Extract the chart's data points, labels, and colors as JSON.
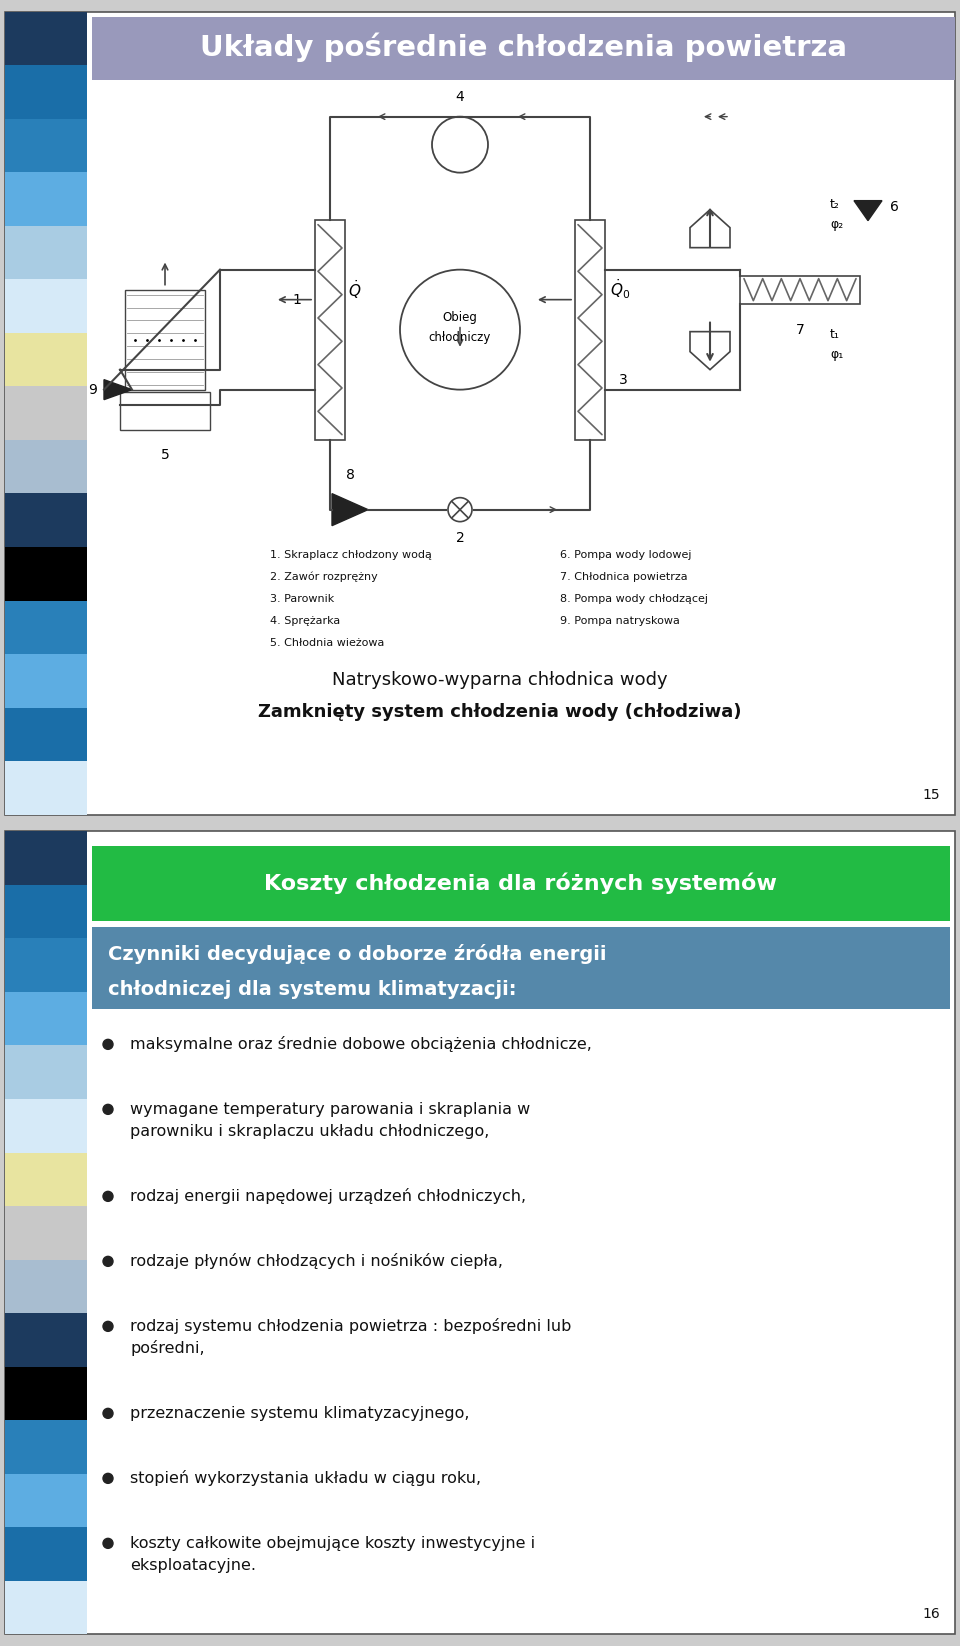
{
  "slide1_title": "Układy pośrednie chłodzenia powietrza",
  "slide1_title_bg": "#9999bb",
  "slide1_subtitle1": "Natryskowo-wyparna chłodnica wody",
  "slide1_subtitle2": "Zamknięty system chłodzenia wody (chłodziwa)",
  "slide1_page": "15",
  "slide2_header": "Koszty chłodzenia dla różnych systemów",
  "slide2_header_bg": "#22bb44",
  "slide2_subheader_line1": "Czynniki decydujące o doborze źródła energii",
  "slide2_subheader_line2": "chłodniczej dla systemu klimatyzacji:",
  "slide2_subheader_bg": "#5588aa",
  "slide2_bullets": [
    "maksymalne oraz średnie dobowe obciążenia chłodnicze,",
    "wymagane temperatury parowania i skraplania w\nparowniku i skraplaczu układu chłodniczego,",
    "rodzaj energii napędowej urządzeń chłodniczych,",
    "rodzaje płynów chłodzących i nośników ciepła,",
    "rodzaj systemu chłodzenia powietrza : bezpośredni lub\npośredni,",
    "przeznaczenie systemu klimatyzacyjnego,",
    "stopień wykorzystania układu w ciągu roku,",
    "koszty całkowite obejmujące koszty inwestycyjne i\neksploatacyjne."
  ],
  "slide2_page": "16",
  "sidebar_colors": [
    "#1c3a5e",
    "#1a6ea8",
    "#2980b9",
    "#5dade2",
    "#a9cce3",
    "#d6eaf8",
    "#e8e4a0",
    "#c8c8c8",
    "#a8bdd0",
    "#1c3a5e",
    "#000000",
    "#2980b9",
    "#5dade2",
    "#1a6ea8",
    "#d6eaf8"
  ],
  "legend_left": [
    "1. Skraplacz chłodzony wodą",
    "2. Zawór rozprężny",
    "3. Parownik",
    "4. Sprężarka",
    "5. Chłodnia wieżowa"
  ],
  "legend_right": [
    "6. Pompa wody lodowej",
    "7. Chłodnica powietrza",
    "8. Pompa wody chłodzącej",
    "9. Pompa natryskowa"
  ]
}
